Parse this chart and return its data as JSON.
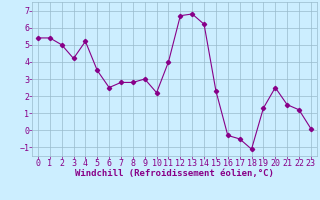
{
  "x": [
    0,
    1,
    2,
    3,
    4,
    5,
    6,
    7,
    8,
    9,
    10,
    11,
    12,
    13,
    14,
    15,
    16,
    17,
    18,
    19,
    20,
    21,
    22,
    23
  ],
  "y": [
    5.4,
    5.4,
    5.0,
    4.2,
    5.2,
    3.5,
    2.5,
    2.8,
    2.8,
    3.0,
    2.2,
    4.0,
    6.7,
    6.8,
    6.2,
    2.3,
    -0.3,
    -0.5,
    -1.1,
    1.3,
    2.5,
    1.5,
    1.2,
    0.1
  ],
  "line_color": "#880088",
  "marker": "D",
  "marker_size": 2.2,
  "bg_color": "#cceeff",
  "grid_color": "#99bbcc",
  "xlabel": "Windchill (Refroidissement éolien,°C)",
  "xlabel_color": "#880088",
  "xlabel_fontsize": 6.5,
  "tick_color": "#880088",
  "tick_fontsize": 6,
  "ylim": [
    -1.5,
    7.5
  ],
  "xlim": [
    -0.5,
    23.5
  ],
  "yticks": [
    -1,
    0,
    1,
    2,
    3,
    4,
    5,
    6,
    7
  ],
  "xticks": [
    0,
    1,
    2,
    3,
    4,
    5,
    6,
    7,
    8,
    9,
    10,
    11,
    12,
    13,
    14,
    15,
    16,
    17,
    18,
    19,
    20,
    21,
    22,
    23
  ]
}
